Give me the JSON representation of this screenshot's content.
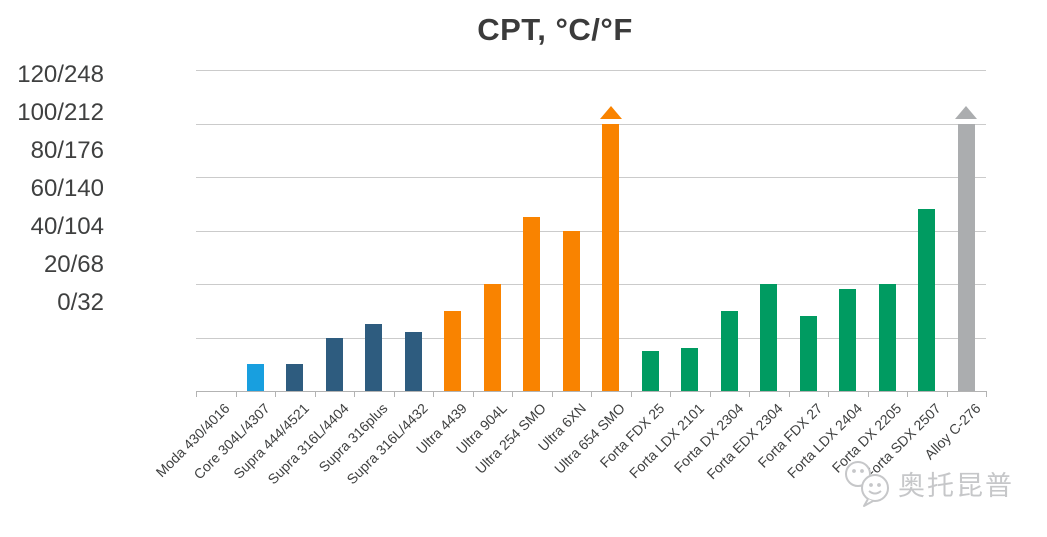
{
  "watermark": {
    "icon": "wechat-icon",
    "text": "奥托昆普"
  },
  "chart_data": {
    "type": "bar",
    "title": "CPT, °C/°F",
    "subtitle": "",
    "legend": "none",
    "grid": "horizontal",
    "y_axis": {
      "unit": "°C/°F",
      "min": 0,
      "max": 120,
      "tick_labels": [
        "120/248",
        "100/212",
        "80/176",
        "60/140",
        "40/104",
        "20/68",
        "0/32"
      ],
      "gridline_values": [
        0,
        20,
        40,
        60,
        80,
        100,
        120
      ]
    },
    "capped_note": "up-arrow above bar means value exceeds the chart scale (>100 °C / 212 °F)",
    "group_colors": {
      "Moda": "#189fdf",
      "Core": "#189fdf",
      "Supra": "#2e5c7f",
      "Ultra": "#f98300",
      "Forta": "#009b61",
      "Alloy": "#abadaf"
    },
    "bars": [
      {
        "label": "Moda 430/4016",
        "value": 0,
        "group": "Moda",
        "capped": false
      },
      {
        "label": "Core 304L/4307",
        "value": 10,
        "group": "Core",
        "capped": false
      },
      {
        "label": "Supra 444/4521",
        "value": 10,
        "group": "Supra",
        "capped": false
      },
      {
        "label": "Supra 316L/4404",
        "value": 20,
        "group": "Supra",
        "capped": false
      },
      {
        "label": "Supra 316plus",
        "value": 25,
        "group": "Supra",
        "capped": false
      },
      {
        "label": "Supra 316L/4432",
        "value": 22,
        "group": "Supra",
        "capped": false
      },
      {
        "label": "Ultra 4439",
        "value": 30,
        "group": "Ultra",
        "capped": false
      },
      {
        "label": "Ultra 904L",
        "value": 40,
        "group": "Ultra",
        "capped": false
      },
      {
        "label": "Ultra 254 SMO",
        "value": 65,
        "group": "Ultra",
        "capped": false
      },
      {
        "label": "Ultra 6XN",
        "value": 60,
        "group": "Ultra",
        "capped": false
      },
      {
        "label": "Ultra 654 SMO",
        "value": 100,
        "group": "Ultra",
        "capped": true
      },
      {
        "label": "Forta FDX 25",
        "value": 15,
        "group": "Forta",
        "capped": false
      },
      {
        "label": "Forta LDX 2101",
        "value": 16,
        "group": "Forta",
        "capped": false
      },
      {
        "label": "Forta DX 2304",
        "value": 30,
        "group": "Forta",
        "capped": false
      },
      {
        "label": "Forta EDX 2304",
        "value": 40,
        "group": "Forta",
        "capped": false
      },
      {
        "label": "Forta FDX 27",
        "value": 28,
        "group": "Forta",
        "capped": false
      },
      {
        "label": "Forta LDX 2404",
        "value": 38,
        "group": "Forta",
        "capped": false
      },
      {
        "label": "Forta DX 2205",
        "value": 40,
        "group": "Forta",
        "capped": false
      },
      {
        "label": "Forta SDX 2507",
        "value": 68,
        "group": "Forta",
        "capped": false
      },
      {
        "label": "Alloy C-276",
        "value": 100,
        "group": "Alloy",
        "capped": true
      }
    ],
    "style_colors": {
      "gridline": "#cbcbcb",
      "axis": "#b3b3b3",
      "text": "#3f4040",
      "title": "#3b3b3b",
      "watermark": "#c6c7c9"
    }
  }
}
